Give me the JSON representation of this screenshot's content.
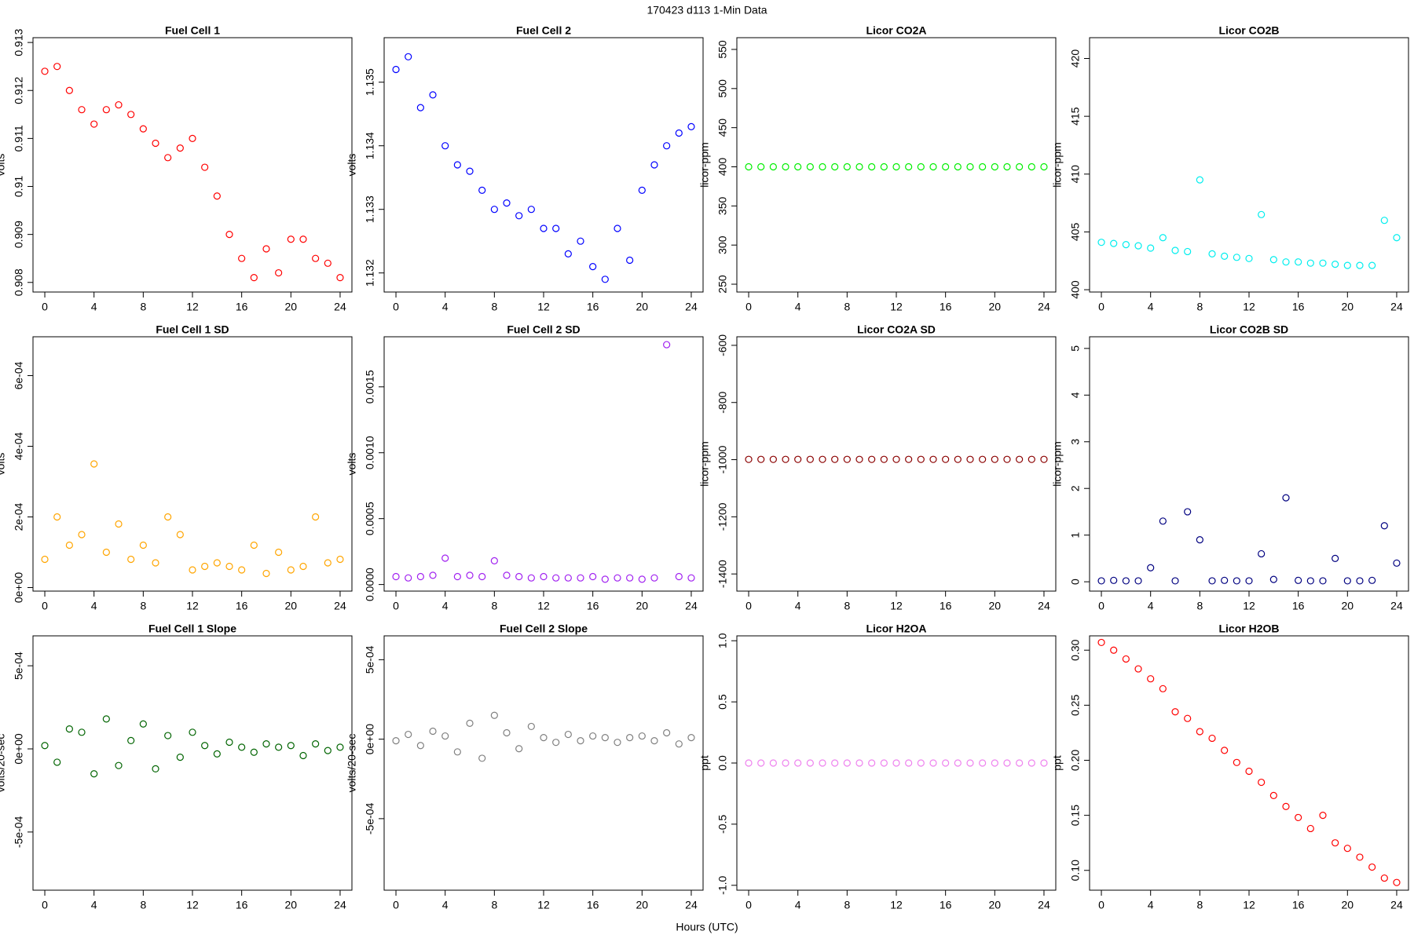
{
  "title": "170423   d113   1-Min Data",
  "x_label": "Hours (UTC)",
  "chart_data": [
    {
      "type": "scatter",
      "title": "Fuel Cell 1",
      "y_label": "volts",
      "color": "#ff0000",
      "x": [
        0,
        1,
        2,
        3,
        4,
        5,
        6,
        7,
        8,
        9,
        10,
        11,
        12,
        13,
        14,
        15,
        16,
        17,
        18,
        19,
        20,
        21,
        22,
        23,
        24
      ],
      "values": [
        0.9124,
        0.9125,
        0.912,
        0.9116,
        0.9113,
        0.9116,
        0.9117,
        0.9115,
        0.9112,
        0.9109,
        0.9106,
        0.9108,
        0.911,
        0.9104,
        0.9098,
        0.909,
        0.9085,
        0.9081,
        0.9087,
        0.9082,
        0.9089,
        0.9089,
        0.9085,
        0.9084,
        0.9081
      ],
      "xlim": [
        -0.96,
        24.96
      ],
      "xticks": [
        0,
        4,
        8,
        12,
        16,
        20,
        24
      ],
      "ylim": [
        0.9078,
        0.9131
      ],
      "yticks": [
        0.908,
        0.909,
        0.91,
        0.911,
        0.912,
        0.913
      ]
    },
    {
      "type": "scatter",
      "title": "Fuel Cell 2",
      "y_label": "volts",
      "color": "#0000ff",
      "x": [
        0,
        1,
        2,
        3,
        4,
        5,
        6,
        7,
        8,
        9,
        10,
        11,
        12,
        13,
        14,
        15,
        16,
        17,
        18,
        19,
        20,
        21,
        22,
        23,
        24
      ],
      "values": [
        1.1352,
        1.1354,
        1.1346,
        1.1348,
        1.134,
        1.1337,
        1.1336,
        1.1333,
        1.133,
        1.1331,
        1.1329,
        1.133,
        1.1327,
        1.1327,
        1.1323,
        1.1325,
        1.1321,
        1.1319,
        1.1327,
        1.1322,
        1.1333,
        1.1337,
        1.134,
        1.1342,
        1.1343
      ],
      "xlim": [
        -0.96,
        24.96
      ],
      "xticks": [
        0,
        4,
        8,
        12,
        16,
        20,
        24
      ],
      "ylim": [
        1.1317,
        1.1357
      ],
      "yticks": [
        1.132,
        1.133,
        1.134,
        1.135
      ]
    },
    {
      "type": "scatter",
      "title": "Licor CO2A",
      "y_label": "licor-ppm",
      "color": "#00ee00",
      "x": [
        0,
        1,
        2,
        3,
        4,
        5,
        6,
        7,
        8,
        9,
        10,
        11,
        12,
        13,
        14,
        15,
        16,
        17,
        18,
        19,
        20,
        21,
        22,
        23,
        24
      ],
      "values": [
        400,
        400,
        400,
        400,
        400,
        400,
        400,
        400,
        400,
        400,
        400,
        400,
        400,
        400,
        400,
        400,
        400,
        400,
        400,
        400,
        400,
        400,
        400,
        400,
        400
      ],
      "xlim": [
        -0.96,
        24.96
      ],
      "xticks": [
        0,
        4,
        8,
        12,
        16,
        20,
        24
      ],
      "ylim": [
        240,
        565
      ],
      "yticks": [
        250,
        300,
        350,
        400,
        450,
        500,
        550
      ]
    },
    {
      "type": "scatter",
      "title": "Licor CO2B",
      "y_label": "licor-ppm",
      "color": "#00eeee",
      "x": [
        0,
        1,
        2,
        3,
        4,
        5,
        6,
        7,
        8,
        9,
        10,
        11,
        12,
        13,
        14,
        15,
        16,
        17,
        18,
        19,
        20,
        21,
        22,
        23,
        24
      ],
      "values": [
        404.1,
        404.0,
        403.9,
        403.8,
        403.6,
        404.5,
        403.4,
        403.3,
        409.5,
        403.1,
        402.9,
        402.8,
        402.7,
        406.5,
        402.6,
        402.4,
        402.4,
        402.3,
        402.3,
        402.2,
        402.1,
        402.1,
        402.1,
        406,
        404.5
      ],
      "xlim": [
        -0.96,
        24.96
      ],
      "xticks": [
        0,
        4,
        8,
        12,
        16,
        20,
        24
      ],
      "ylim": [
        399.8,
        421.8
      ],
      "yticks": [
        400,
        405,
        410,
        415,
        420
      ]
    },
    {
      "type": "scatter",
      "title": "Fuel Cell 1 SD",
      "y_label": "volts",
      "color": "#ffa500",
      "x": [
        0,
        1,
        2,
        3,
        4,
        5,
        6,
        7,
        8,
        9,
        10,
        11,
        12,
        13,
        14,
        15,
        16,
        17,
        18,
        19,
        20,
        21,
        22,
        23,
        24
      ],
      "values": [
        8e-05,
        0.0002,
        0.00012,
        0.00015,
        0.00035,
        0.0001,
        0.00018,
        8e-05,
        0.00012,
        7e-05,
        0.0002,
        0.00015,
        5e-05,
        6e-05,
        7e-05,
        6e-05,
        5e-05,
        0.00012,
        4e-05,
        0.0001,
        5e-05,
        6e-05,
        0.0002,
        7e-05,
        8e-05
      ],
      "xlim": [
        -0.96,
        24.96
      ],
      "xticks": [
        0,
        4,
        8,
        12,
        16,
        20,
        24
      ],
      "ylim": [
        -1e-05,
        0.00071
      ],
      "yticks": [
        {
          "value": 0,
          "label": "0e+00"
        },
        {
          "value": 0.0002,
          "label": "2e-04"
        },
        {
          "value": 0.0004,
          "label": "4e-04"
        },
        {
          "value": 0.0006,
          "label": "6e-04"
        }
      ]
    },
    {
      "type": "scatter",
      "title": "Fuel Cell 2 SD",
      "y_label": "volts",
      "color": "#a020f0",
      "x": [
        0,
        1,
        2,
        3,
        4,
        5,
        6,
        7,
        8,
        9,
        10,
        11,
        12,
        13,
        14,
        15,
        16,
        17,
        18,
        19,
        20,
        21,
        22,
        23,
        24
      ],
      "values": [
        6e-05,
        5e-05,
        6e-05,
        7e-05,
        0.0002,
        6e-05,
        7e-05,
        6e-05,
        0.00018,
        7e-05,
        6e-05,
        5e-05,
        6e-05,
        5e-05,
        5e-05,
        5e-05,
        6e-05,
        4e-05,
        5e-05,
        5e-05,
        4e-05,
        5e-05,
        0.00182,
        6e-05,
        5e-05
      ],
      "xlim": [
        -0.96,
        24.96
      ],
      "xticks": [
        0,
        4,
        8,
        12,
        16,
        20,
        24
      ],
      "ylim": [
        -5e-05,
        0.00188
      ],
      "yticks": [
        {
          "value": 0,
          "label": "0.0000"
        },
        {
          "value": 0.0005,
          "label": "0.0005"
        },
        {
          "value": 0.001,
          "label": "0.0010"
        },
        {
          "value": 0.0015,
          "label": "0.0015"
        }
      ]
    },
    {
      "type": "scatter",
      "title": "Licor CO2A SD",
      "y_label": "licor-ppm",
      "color": "#8b0000",
      "x": [
        0,
        1,
        2,
        3,
        4,
        5,
        6,
        7,
        8,
        9,
        10,
        11,
        12,
        13,
        14,
        15,
        16,
        17,
        18,
        19,
        20,
        21,
        22,
        23,
        24
      ],
      "values": [
        -999,
        -999,
        -999,
        -999,
        -999,
        -999,
        -999,
        -999,
        -999,
        -999,
        -999,
        -999,
        -999,
        -999,
        -999,
        -999,
        -999,
        -999,
        -999,
        -999,
        -999,
        -999,
        -999,
        -999,
        -999
      ],
      "xlim": [
        -0.96,
        24.96
      ],
      "xticks": [
        0,
        4,
        8,
        12,
        16,
        20,
        24
      ],
      "ylim": [
        -1460,
        -570
      ],
      "yticks": [
        -1400,
        -1200,
        -1000,
        -800,
        -600
      ]
    },
    {
      "type": "scatter",
      "title": "Licor CO2B SD",
      "y_label": "licor-ppm",
      "color": "#000080",
      "x": [
        0,
        1,
        2,
        3,
        4,
        5,
        6,
        7,
        8,
        9,
        10,
        11,
        12,
        13,
        14,
        15,
        16,
        17,
        18,
        19,
        20,
        21,
        22,
        23,
        24
      ],
      "values": [
        0.02,
        0.03,
        0.02,
        0.02,
        0.3,
        1.3,
        0.02,
        1.5,
        0.9,
        0.02,
        0.03,
        0.02,
        0.02,
        0.6,
        0.05,
        1.8,
        0.03,
        0.02,
        0.02,
        0.5,
        0.02,
        0.02,
        0.03,
        1.2,
        0.4
      ],
      "xlim": [
        -0.96,
        24.96
      ],
      "xticks": [
        0,
        4,
        8,
        12,
        16,
        20,
        24
      ],
      "ylim": [
        -0.2,
        5.25
      ],
      "yticks": [
        0,
        1,
        2,
        3,
        4,
        5
      ]
    },
    {
      "type": "scatter",
      "title": "Fuel Cell 1 Slope",
      "y_label": "volts/20-sec",
      "color": "#006400",
      "x": [
        0,
        1,
        2,
        3,
        4,
        5,
        6,
        7,
        8,
        9,
        10,
        11,
        12,
        13,
        14,
        15,
        16,
        17,
        18,
        19,
        20,
        21,
        22,
        23,
        24
      ],
      "values": [
        2e-05,
        -8e-05,
        0.00012,
        0.0001,
        -0.00015,
        0.00018,
        -0.0001,
        5e-05,
        0.00015,
        -0.00012,
        8e-05,
        -5e-05,
        0.0001,
        2e-05,
        -3e-05,
        4e-05,
        1e-05,
        -2e-05,
        3e-05,
        1e-05,
        2e-05,
        -4e-05,
        3e-05,
        -1e-05,
        1e-05
      ],
      "xlim": [
        -0.96,
        24.96
      ],
      "xticks": [
        0,
        4,
        8,
        12,
        16,
        20,
        24
      ],
      "ylim": [
        -0.00085,
        0.00068
      ],
      "yticks": [
        {
          "value": -0.0005,
          "label": "-5e-04"
        },
        {
          "value": 0,
          "label": "0e+00"
        },
        {
          "value": 0.0005,
          "label": "5e-04"
        }
      ]
    },
    {
      "type": "scatter",
      "title": "Fuel Cell 2 Slope",
      "y_label": "volts/20-sec",
      "color": "#808080",
      "x": [
        0,
        1,
        2,
        3,
        4,
        5,
        6,
        7,
        8,
        9,
        10,
        11,
        12,
        13,
        14,
        15,
        16,
        17,
        18,
        19,
        20,
        21,
        22,
        23,
        24
      ],
      "values": [
        -1e-05,
        3e-05,
        -4e-05,
        5e-05,
        2e-05,
        -8e-05,
        0.0001,
        -0.00012,
        0.00015,
        4e-05,
        -6e-05,
        8e-05,
        1e-05,
        -2e-05,
        3e-05,
        -1e-05,
        2e-05,
        1e-05,
        -2e-05,
        1e-05,
        2e-05,
        -1e-05,
        4e-05,
        -3e-05,
        1e-05
      ],
      "xlim": [
        -0.96,
        24.96
      ],
      "xticks": [
        0,
        4,
        8,
        12,
        16,
        20,
        24
      ],
      "ylim": [
        -0.00095,
        0.00065
      ],
      "yticks": [
        {
          "value": -0.0005,
          "label": "-5e-04"
        },
        {
          "value": 0,
          "label": "0e+00"
        },
        {
          "value": 0.0005,
          "label": "5e-04"
        }
      ]
    },
    {
      "type": "scatter",
      "title": "Licor H2OA",
      "y_label": "ppt",
      "color": "#ee82ee",
      "x": [
        0,
        1,
        2,
        3,
        4,
        5,
        6,
        7,
        8,
        9,
        10,
        11,
        12,
        13,
        14,
        15,
        16,
        17,
        18,
        19,
        20,
        21,
        22,
        23,
        24
      ],
      "values": [
        0,
        0,
        0,
        0,
        0,
        0,
        0,
        0,
        0,
        0,
        0,
        0,
        0,
        0,
        0,
        0,
        0,
        0,
        0,
        0,
        0,
        0,
        0,
        0,
        0
      ],
      "xlim": [
        -0.96,
        24.96
      ],
      "xticks": [
        0,
        4,
        8,
        12,
        16,
        20,
        24
      ],
      "ylim": [
        -1.04,
        1.04
      ],
      "yticks": [
        {
          "value": -1,
          "label": "-1.0"
        },
        {
          "value": -0.5,
          "label": "-0.5"
        },
        {
          "value": 0,
          "label": "0.0"
        },
        {
          "value": 0.5,
          "label": "0.5"
        },
        {
          "value": 1,
          "label": "1.0"
        }
      ]
    },
    {
      "type": "scatter",
      "title": "Licor H2OB",
      "y_label": "ppt",
      "color": "#ff0000",
      "x": [
        0,
        1,
        2,
        3,
        4,
        5,
        6,
        7,
        8,
        9,
        10,
        11,
        12,
        13,
        14,
        15,
        16,
        17,
        18,
        19,
        20,
        21,
        22,
        23,
        24
      ],
      "values": [
        0.307,
        0.3,
        0.292,
        0.283,
        0.274,
        0.265,
        0.244,
        0.238,
        0.226,
        0.22,
        0.209,
        0.198,
        0.19,
        0.18,
        0.168,
        0.158,
        0.148,
        0.138,
        0.15,
        0.125,
        0.12,
        0.112,
        0.103,
        0.093,
        0.089
      ],
      "xlim": [
        -0.96,
        24.96
      ],
      "xticks": [
        0,
        4,
        8,
        12,
        16,
        20,
        24
      ],
      "ylim": [
        0.082,
        0.313
      ],
      "yticks": [
        {
          "value": 0.1,
          "label": "0.10"
        },
        {
          "value": 0.15,
          "label": "0.15"
        },
        {
          "value": 0.2,
          "label": "0.20"
        },
        {
          "value": 0.25,
          "label": "0.25"
        },
        {
          "value": 0.3,
          "label": "0.30"
        }
      ]
    }
  ]
}
